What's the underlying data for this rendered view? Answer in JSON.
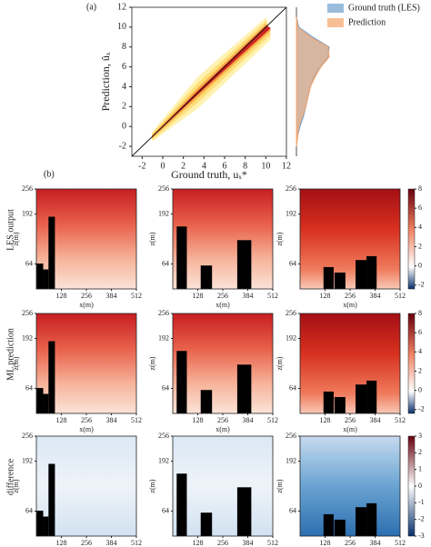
{
  "panel_a": {
    "type": "scatter-density",
    "label": "(a)",
    "xlabel": "Ground truth, uₓ*",
    "ylabel": "Prediction, ûₓ",
    "xlim": [
      -3,
      12
    ],
    "ylim": [
      -3,
      12
    ],
    "xticks": [
      -2,
      0,
      2,
      4,
      6,
      8,
      10,
      12
    ],
    "yticks": [
      -2,
      0,
      2,
      4,
      6,
      8,
      10,
      12
    ],
    "marginal": {
      "y": [
        -2,
        -1,
        0,
        1,
        2,
        3,
        4,
        5,
        6,
        7,
        8,
        9,
        10,
        11
      ],
      "series": [
        {
          "name": "Ground truth (LES)",
          "color": "#6f9fcf",
          "values": [
            0,
            0.01,
            0.03,
            0.06,
            0.08,
            0.1,
            0.12,
            0.15,
            0.2,
            0.27,
            0.28,
            0.14,
            0.02,
            0
          ]
        },
        {
          "name": "Prediction",
          "color": "#f5a46a",
          "values": [
            0,
            0.01,
            0.02,
            0.05,
            0.08,
            0.1,
            0.12,
            0.16,
            0.21,
            0.28,
            0.27,
            0.12,
            0.01,
            0
          ]
        }
      ]
    }
  },
  "panel_b": {
    "type": "heatmap-grid",
    "label": "(b)",
    "xlabel": "x(m)",
    "ylabel": "z(m)",
    "xlim": [
      0,
      512
    ],
    "ylim": [
      0,
      256
    ],
    "xticks": [
      128,
      256,
      384,
      512
    ],
    "yticks": [
      64,
      192,
      256
    ],
    "buildings": [
      [
        {
          "x0": 0,
          "x1": 35,
          "height": 65
        },
        {
          "x0": 35,
          "x1": 62,
          "height": 50
        },
        {
          "x0": 62,
          "x1": 95,
          "height": 185
        }
      ],
      [
        {
          "x0": 20,
          "x1": 72,
          "height": 160
        },
        {
          "x0": 143,
          "x1": 201,
          "height": 60
        },
        {
          "x0": 330,
          "x1": 402,
          "height": 125
        }
      ],
      [
        {
          "x0": 120,
          "x1": 172,
          "height": 56
        },
        {
          "x0": 176,
          "x1": 232,
          "height": 42
        },
        {
          "x0": 284,
          "x1": 340,
          "height": 74
        },
        {
          "x0": 340,
          "x1": 392,
          "height": 84
        }
      ]
    ],
    "rows": [
      {
        "label": "LES output",
        "clim": [
          -2.4,
          8
        ],
        "cticks": [
          -2,
          0,
          2,
          4,
          6,
          8
        ]
      },
      {
        "label": "ML prediction",
        "clim": [
          -2.4,
          8
        ],
        "cticks": [
          -2,
          0,
          2,
          4,
          6,
          8
        ]
      },
      {
        "label": "difference",
        "clim": [
          -3,
          3
        ],
        "cticks": [
          -3,
          -2,
          -1,
          0,
          1,
          2,
          3
        ]
      }
    ]
  }
}
